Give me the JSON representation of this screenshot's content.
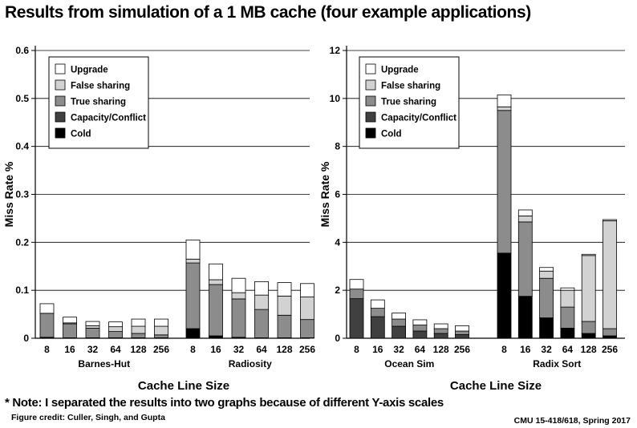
{
  "page": {
    "title": "Results from simulation of a 1 MB cache (four example applications)",
    "note": "* Note: I separated the results into two graphs because of different Y-axis scales",
    "credit": "Figure credit: Culler, Singh, and Gupta",
    "course": "CMU 15-418/618, Spring 2017"
  },
  "colors": {
    "Upgrade": "#ffffff",
    "False sharing": "#d2d2d2",
    "True sharing": "#8c8c8c",
    "Capacity/Conflict": "#404040",
    "Cold": "#000000"
  },
  "chart_data": [
    {
      "type": "bar",
      "stacked": true,
      "xlabel": "Cache Line Size",
      "ylabel": "Miss Rate %",
      "ylim": [
        0,
        0.6
      ],
      "yticks": [
        "0",
        "0.1",
        "0.2",
        "0.3",
        "0.4",
        "0.5",
        "0.6"
      ],
      "legend_position": "top-left",
      "series_order": [
        "Cold",
        "Capacity/Conflict",
        "True sharing",
        "False sharing",
        "Upgrade"
      ],
      "groups": [
        {
          "name": "Barnes-Hut",
          "categories": [
            "8",
            "16",
            "32",
            "64",
            "128",
            "256"
          ],
          "series": [
            {
              "name": "Cold",
              "values": [
                0.002,
                0.001,
                0.001,
                0.001,
                0.001,
                0.001
              ]
            },
            {
              "name": "Capacity/Conflict",
              "values": [
                0.0,
                0.0,
                0.0,
                0.0,
                0.0,
                0.0
              ]
            },
            {
              "name": "True sharing",
              "values": [
                0.05,
                0.029,
                0.02,
                0.013,
                0.009,
                0.006
              ]
            },
            {
              "name": "False sharing",
              "values": [
                0.0,
                0.002,
                0.005,
                0.01,
                0.015,
                0.018
              ]
            },
            {
              "name": "Upgrade",
              "values": [
                0.02,
                0.012,
                0.009,
                0.01,
                0.015,
                0.015
              ]
            }
          ]
        },
        {
          "name": "Radiosity",
          "categories": [
            "8",
            "16",
            "32",
            "64",
            "128",
            "256"
          ],
          "series": [
            {
              "name": "Cold",
              "values": [
                0.02,
                0.005,
                0.002,
                0.001,
                0.001,
                0.001
              ]
            },
            {
              "name": "Capacity/Conflict",
              "values": [
                0.0,
                0.0,
                0.0,
                0.0,
                0.0,
                0.0
              ]
            },
            {
              "name": "True sharing",
              "values": [
                0.137,
                0.107,
                0.08,
                0.059,
                0.047,
                0.038
              ]
            },
            {
              "name": "False sharing",
              "values": [
                0.008,
                0.01,
                0.013,
                0.03,
                0.04,
                0.047
              ]
            },
            {
              "name": "Upgrade",
              "values": [
                0.04,
                0.033,
                0.03,
                0.028,
                0.028,
                0.028
              ]
            }
          ]
        }
      ]
    },
    {
      "type": "bar",
      "stacked": true,
      "xlabel": "Cache Line Size",
      "ylabel": "Miss Rate %",
      "ylim": [
        0,
        12
      ],
      "yticks": [
        "0",
        "2",
        "4",
        "6",
        "8",
        "10",
        "12"
      ],
      "legend_position": "top-left",
      "series_order": [
        "Cold",
        "Capacity/Conflict",
        "True sharing",
        "False sharing",
        "Upgrade"
      ],
      "groups": [
        {
          "name": "Ocean Sim",
          "categories": [
            "8",
            "16",
            "32",
            "64",
            "128",
            "256"
          ],
          "series": [
            {
              "name": "Cold",
              "values": [
                0.0,
                0.0,
                0.0,
                0.0,
                0.0,
                0.0
              ]
            },
            {
              "name": "Capacity/Conflict",
              "values": [
                1.65,
                0.9,
                0.5,
                0.3,
                0.2,
                0.15
              ]
            },
            {
              "name": "True sharing",
              "values": [
                0.4,
                0.35,
                0.3,
                0.25,
                0.2,
                0.15
              ]
            },
            {
              "name": "False sharing",
              "values": [
                0.0,
                0.0,
                0.0,
                0.0,
                0.0,
                0.0
              ]
            },
            {
              "name": "Upgrade",
              "values": [
                0.4,
                0.35,
                0.25,
                0.22,
                0.2,
                0.22
              ]
            }
          ]
        },
        {
          "name": "Radix Sort",
          "categories": [
            "8",
            "16",
            "32",
            "64",
            "128",
            "256"
          ],
          "series": [
            {
              "name": "Cold",
              "values": [
                3.55,
                1.75,
                0.85,
                0.42,
                0.2,
                0.1
              ]
            },
            {
              "name": "Capacity/Conflict",
              "values": [
                0.0,
                0.0,
                0.0,
                0.0,
                0.0,
                0.0
              ]
            },
            {
              "name": "True sharing",
              "values": [
                5.95,
                3.1,
                1.65,
                0.88,
                0.5,
                0.3
              ]
            },
            {
              "name": "False sharing",
              "values": [
                0.15,
                0.25,
                0.3,
                0.7,
                2.75,
                4.5
              ]
            },
            {
              "name": "Upgrade",
              "values": [
                0.5,
                0.25,
                0.15,
                0.1,
                0.05,
                0.05
              ]
            }
          ]
        }
      ]
    }
  ]
}
